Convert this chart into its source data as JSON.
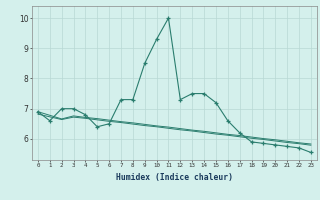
{
  "x": [
    0,
    1,
    2,
    3,
    4,
    5,
    6,
    7,
    8,
    9,
    10,
    11,
    12,
    13,
    14,
    15,
    16,
    17,
    18,
    19,
    20,
    21,
    22,
    23
  ],
  "y_main": [
    6.9,
    6.6,
    7.0,
    7.0,
    6.8,
    6.4,
    6.5,
    7.3,
    7.3,
    8.5,
    9.3,
    10.0,
    7.3,
    7.5,
    7.5,
    7.2,
    6.6,
    6.2,
    5.9,
    5.85,
    5.8,
    5.75,
    5.7,
    5.55
  ],
  "y_line1": [
    6.9,
    6.78,
    6.66,
    6.76,
    6.71,
    6.67,
    6.62,
    6.57,
    6.53,
    6.48,
    6.43,
    6.39,
    6.34,
    6.29,
    6.25,
    6.2,
    6.15,
    6.11,
    6.06,
    6.01,
    5.97,
    5.92,
    5.87,
    5.83
  ],
  "y_line2": [
    6.82,
    6.73,
    6.64,
    6.72,
    6.68,
    6.63,
    6.58,
    6.54,
    6.49,
    6.44,
    6.4,
    6.35,
    6.3,
    6.26,
    6.21,
    6.16,
    6.12,
    6.07,
    6.02,
    5.98,
    5.93,
    5.88,
    5.84,
    5.79
  ],
  "color": "#2a7d6e",
  "bg_color": "#d4f0ec",
  "grid_color": "#b8d8d4",
  "xlabel": "Humidex (Indice chaleur)",
  "ylabel_ticks": [
    6,
    7,
    8,
    9,
    10
  ],
  "xlim": [
    -0.5,
    23.5
  ],
  "ylim": [
    5.3,
    10.4
  ]
}
